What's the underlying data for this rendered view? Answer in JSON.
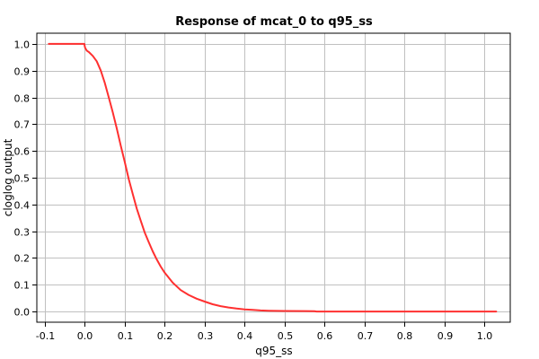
{
  "chart_data": {
    "type": "line",
    "title": "Response of mcat_0 to q95_ss",
    "xlabel": "q95_ss",
    "ylabel": "cloglog output",
    "xlim": [
      -0.12,
      1.065
    ],
    "ylim": [
      -0.04,
      1.04
    ],
    "xticks": [
      -0.1,
      0.0,
      0.1,
      0.2,
      0.3,
      0.4,
      0.5,
      0.6,
      0.7,
      0.8,
      0.9,
      1.0
    ],
    "xtick_labels": [
      "-0.1",
      "0.0",
      "0.1",
      "0.2",
      "0.3",
      "0.4",
      "0.5",
      "0.6",
      "0.7",
      "0.8",
      "0.9",
      "1.0"
    ],
    "yticks": [
      0.0,
      0.1,
      0.2,
      0.3,
      0.4,
      0.5,
      0.6,
      0.7,
      0.8,
      0.9,
      1.0
    ],
    "ytick_labels": [
      "0.0",
      "0.1",
      "0.2",
      "0.3",
      "0.4",
      "0.5",
      "0.6",
      "0.7",
      "0.8",
      "0.9",
      "1.0"
    ],
    "grid": true,
    "legend": "none",
    "line_color": "#ff3030",
    "grid_color": "#c0c0c0",
    "series": [
      {
        "x": [
          -0.09,
          -0.001,
          0.0,
          0.001,
          0.005,
          0.01,
          0.02,
          0.03,
          0.04,
          0.05,
          0.06,
          0.07,
          0.08,
          0.09,
          0.1,
          0.11,
          0.12,
          0.13,
          0.14,
          0.15,
          0.16,
          0.17,
          0.18,
          0.19,
          0.2,
          0.22,
          0.24,
          0.26,
          0.28,
          0.3,
          0.32,
          0.34,
          0.36,
          0.38,
          0.4,
          0.42,
          0.44,
          0.46,
          0.5,
          0.55,
          0.575,
          0.58,
          0.65,
          0.8,
          0.95,
          1.03
        ],
        "y": [
          1.0,
          1.0,
          0.99,
          0.985,
          0.975,
          0.97,
          0.955,
          0.935,
          0.9,
          0.855,
          0.8,
          0.745,
          0.685,
          0.62,
          0.56,
          0.495,
          0.44,
          0.385,
          0.34,
          0.295,
          0.26,
          0.225,
          0.195,
          0.168,
          0.145,
          0.108,
          0.08,
          0.062,
          0.048,
          0.037,
          0.027,
          0.02,
          0.015,
          0.011,
          0.008,
          0.006,
          0.004,
          0.003,
          0.002,
          0.0015,
          0.001,
          0.0,
          0.0,
          0.0,
          0.0,
          0.0
        ]
      }
    ]
  }
}
